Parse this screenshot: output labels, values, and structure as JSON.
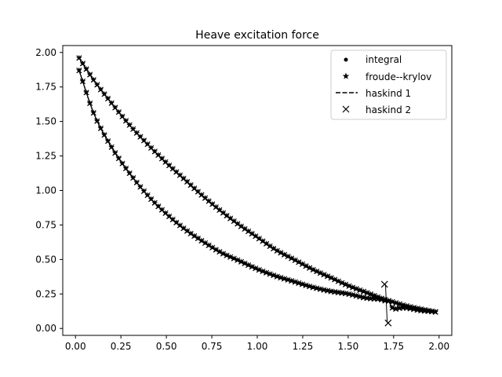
{
  "chart_data": {
    "type": "line",
    "title": "Heave excitation force",
    "xlabel": "",
    "ylabel": "",
    "xlim": [
      -0.07,
      2.07
    ],
    "ylim": [
      -0.05,
      2.05
    ],
    "xticks": [
      "0.00",
      "0.25",
      "0.50",
      "0.75",
      "1.00",
      "1.25",
      "1.50",
      "1.75",
      "2.00"
    ],
    "yticks": [
      "0.00",
      "0.25",
      "0.50",
      "0.75",
      "1.00",
      "1.25",
      "1.50",
      "1.75",
      "2.00"
    ],
    "grid": false,
    "legend": {
      "position": "top-right",
      "entries": [
        {
          "name": "integral",
          "marker": "dot"
        },
        {
          "name": "froude--krylov",
          "marker": "star"
        },
        {
          "name": "haskind 1",
          "marker": "dashed-line"
        },
        {
          "name": "haskind 2",
          "marker": "x"
        }
      ]
    },
    "series": [
      {
        "name": "froude--krylov",
        "curve": "upper",
        "x": [
          0.02,
          0.1,
          0.2,
          0.3,
          0.4,
          0.5,
          0.6,
          0.7,
          0.8,
          0.9,
          1.0,
          1.1,
          1.2,
          1.3,
          1.4,
          1.5,
          1.6,
          1.7,
          1.75,
          1.8,
          1.9,
          1.98
        ],
        "y": [
          1.96,
          1.8,
          1.63,
          1.47,
          1.33,
          1.2,
          1.08,
          0.96,
          0.85,
          0.75,
          0.66,
          0.57,
          0.5,
          0.43,
          0.37,
          0.31,
          0.26,
          0.21,
          0.19,
          0.17,
          0.14,
          0.12
        ]
      },
      {
        "name": "integral",
        "curve": "lower",
        "x": [
          0.02,
          0.1,
          0.2,
          0.3,
          0.4,
          0.5,
          0.6,
          0.7,
          0.8,
          0.9,
          1.0,
          1.1,
          1.2,
          1.3,
          1.4,
          1.5,
          1.6,
          1.68,
          1.71,
          1.72,
          1.75,
          1.8,
          1.9,
          1.98
        ],
        "y": [
          1.87,
          1.56,
          1.31,
          1.12,
          0.96,
          0.83,
          0.72,
          0.63,
          0.55,
          0.49,
          0.43,
          0.38,
          0.34,
          0.3,
          0.27,
          0.25,
          0.22,
          0.21,
          0.2,
          0.2,
          0.14,
          0.15,
          0.13,
          0.12
        ]
      },
      {
        "name": "haskind 2",
        "curve": "anomaly",
        "x": [
          1.7,
          1.72
        ],
        "y": [
          0.32,
          0.04
        ]
      }
    ]
  }
}
